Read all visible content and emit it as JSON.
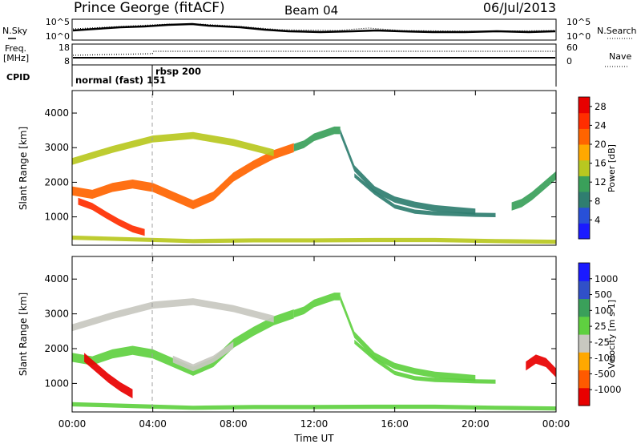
{
  "header": {
    "station": "Prince George (fitACF)",
    "beam": "Beam 04",
    "date": "06/Jul/2013"
  },
  "top_panels": {
    "nsky_label": "N.Sky",
    "nsky_ticks": [
      "10^5",
      "10^0"
    ],
    "nsearch_label": "N.Search",
    "freq_label": "Freq.",
    "freq_unit": "[MHz]",
    "freq_ticks": [
      "18",
      "8"
    ],
    "nave_label": "Nave",
    "nave_ticks": [
      "60",
      "0"
    ],
    "cpid_label": "CPID",
    "cpid_segments": [
      {
        "label": "normal (fast) 151",
        "start_h": 0.0,
        "end_h": 4.0
      },
      {
        "label": "rbsp 200",
        "start_h": 4.0,
        "end_h": 24.0
      }
    ]
  },
  "colors": {
    "power": [
      "#1a1aff",
      "#2850d8",
      "#2f7e70",
      "#3aa05a",
      "#b8c820",
      "#ffa800",
      "#ff6400",
      "#ff2e00",
      "#e80000"
    ],
    "velocity": [
      "#e80000",
      "#ff5a00",
      "#ffa800",
      "#c8c8c0",
      "#5fd040",
      "#3aa05a",
      "#3050c8",
      "#1a1aff"
    ]
  },
  "x_axis": {
    "title": "Time UT",
    "ticks": [
      "00:00",
      "04:00",
      "08:00",
      "12:00",
      "16:00",
      "20:00",
      "00:00"
    ]
  },
  "chart_data": [
    {
      "type": "heatmap",
      "name": "power",
      "ylabel": "Slant Range [km]",
      "xlim_hours": [
        0,
        24
      ],
      "ylim": [
        180,
        4650
      ],
      "yticks": [
        "1000",
        "2000",
        "3000",
        "4000"
      ],
      "colorbar": {
        "label": "Power [dB]",
        "ticks": [
          "4",
          "8",
          "12",
          "16",
          "20",
          "24",
          "28"
        ],
        "range": [
          0,
          30
        ]
      },
      "bands": [
        {
          "x": [
            0.0,
            1.0,
            2.0,
            3.0,
            4.0,
            5.0,
            6.0,
            7.0,
            8.0,
            9.0,
            10.0,
            11.0
          ],
          "y": [
            1750,
            1650,
            1850,
            1950,
            1850,
            1600,
            1350,
            1600,
            2150,
            2500,
            2800,
            3000
          ],
          "width": 260,
          "value": 22
        },
        {
          "x": [
            11.0,
            11.5,
            12.0,
            12.5,
            13.0,
            13.3
          ],
          "y": [
            3000,
            3100,
            3300,
            3400,
            3500,
            3500
          ],
          "width": 220,
          "value": 12
        },
        {
          "x": [
            13.3,
            13.6,
            14.0,
            15.0,
            16.0,
            17.0,
            18.0,
            19.0,
            20.0
          ],
          "y": [
            3450,
            3000,
            2400,
            1800,
            1500,
            1350,
            1250,
            1200,
            1150
          ],
          "width": 180,
          "value": 9
        },
        {
          "x": [
            14.0,
            15.0,
            16.0,
            17.0,
            18.0,
            19.0,
            20.0,
            21.0
          ],
          "y": [
            2200,
            1700,
            1300,
            1150,
            1100,
            1080,
            1060,
            1050
          ],
          "width": 120,
          "value": 7
        },
        {
          "x": [
            0.3,
            1.0,
            1.7,
            2.3,
            3.0,
            3.6
          ],
          "y": [
            1450,
            1300,
            1050,
            850,
            650,
            550
          ],
          "width": 200,
          "value": 26
        },
        {
          "x": [
            0.0,
            3.0,
            6.0,
            9.0,
            12.0,
            15.0,
            18.0,
            21.0,
            24.0
          ],
          "y": [
            400,
            350,
            300,
            320,
            320,
            330,
            330,
            300,
            280
          ],
          "width": 120,
          "value": 14
        },
        {
          "x": [
            0.0,
            2.0,
            4.0,
            6.0,
            8.0,
            10.0
          ],
          "y": [
            2600,
            2950,
            3250,
            3350,
            3150,
            2850
          ],
          "width": 200,
          "value": 16
        },
        {
          "x": [
            21.8,
            22.3,
            22.8,
            23.2,
            23.6,
            24.0
          ],
          "y": [
            1300,
            1400,
            1600,
            1800,
            2000,
            2200
          ],
          "width": 240,
          "value": 10
        }
      ]
    },
    {
      "type": "heatmap",
      "name": "velocity",
      "ylabel": "Slant Range [km]",
      "xlim_hours": [
        0,
        24
      ],
      "ylim": [
        180,
        4650
      ],
      "yticks": [
        "1000",
        "2000",
        "3000",
        "4000"
      ],
      "colorbar": {
        "label": "Velocity [m s-1]",
        "ticks": [
          "1000",
          "500",
          "100",
          "25",
          "-25",
          "-100",
          "-500",
          "-1000"
        ],
        "range": [
          -1200,
          1200
        ]
      },
      "bands": [
        {
          "x": [
            0.0,
            1.0,
            2.0,
            3.0,
            4.0,
            5.0,
            6.0,
            7.0,
            8.0,
            9.0,
            10.0,
            11.0
          ],
          "y": [
            1750,
            1650,
            1850,
            1950,
            1850,
            1600,
            1350,
            1600,
            2150,
            2500,
            2800,
            3000
          ],
          "width": 260,
          "value": 0
        },
        {
          "x": [
            11.0,
            11.5,
            12.0,
            12.5,
            13.0,
            13.3
          ],
          "y": [
            3000,
            3100,
            3300,
            3400,
            3500,
            3500
          ],
          "width": 220,
          "value": 0
        },
        {
          "x": [
            13.3,
            13.6,
            14.0,
            15.0,
            16.0,
            17.0,
            18.0,
            19.0,
            20.0
          ],
          "y": [
            3450,
            3000,
            2400,
            1800,
            1500,
            1350,
            1250,
            1200,
            1150
          ],
          "width": 180,
          "value": 0
        },
        {
          "x": [
            14.0,
            15.0,
            16.0,
            17.0,
            18.0,
            19.0,
            20.0,
            21.0
          ],
          "y": [
            2200,
            1700,
            1300,
            1150,
            1100,
            1080,
            1060,
            1050
          ],
          "width": 120,
          "value": 0
        },
        {
          "x": [
            0.6,
            1.2,
            1.8,
            2.4,
            3.0
          ],
          "y": [
            1750,
            1450,
            1150,
            900,
            700
          ],
          "width": 260,
          "value": -1000
        },
        {
          "x": [
            0.0,
            3.0,
            6.0,
            9.0,
            12.0,
            15.0,
            18.0,
            21.0,
            24.0
          ],
          "y": [
            400,
            350,
            300,
            320,
            320,
            330,
            330,
            300,
            280
          ],
          "width": 120,
          "value": 150
        },
        {
          "x": [
            5.0,
            6.0,
            7.0,
            8.0
          ],
          "y": [
            1700,
            1450,
            1700,
            2100
          ],
          "width": 200,
          "value": -300
        },
        {
          "x": [
            0.0,
            2.0,
            4.0,
            6.0,
            8.0,
            10.0
          ],
          "y": [
            2600,
            2950,
            3250,
            3350,
            3150,
            2850
          ],
          "width": 200,
          "value": -300
        },
        {
          "x": [
            22.5,
            23.0,
            23.5,
            24.0
          ],
          "y": [
            1500,
            1700,
            1600,
            1300
          ],
          "width": 260,
          "value": -1000
        }
      ]
    }
  ]
}
